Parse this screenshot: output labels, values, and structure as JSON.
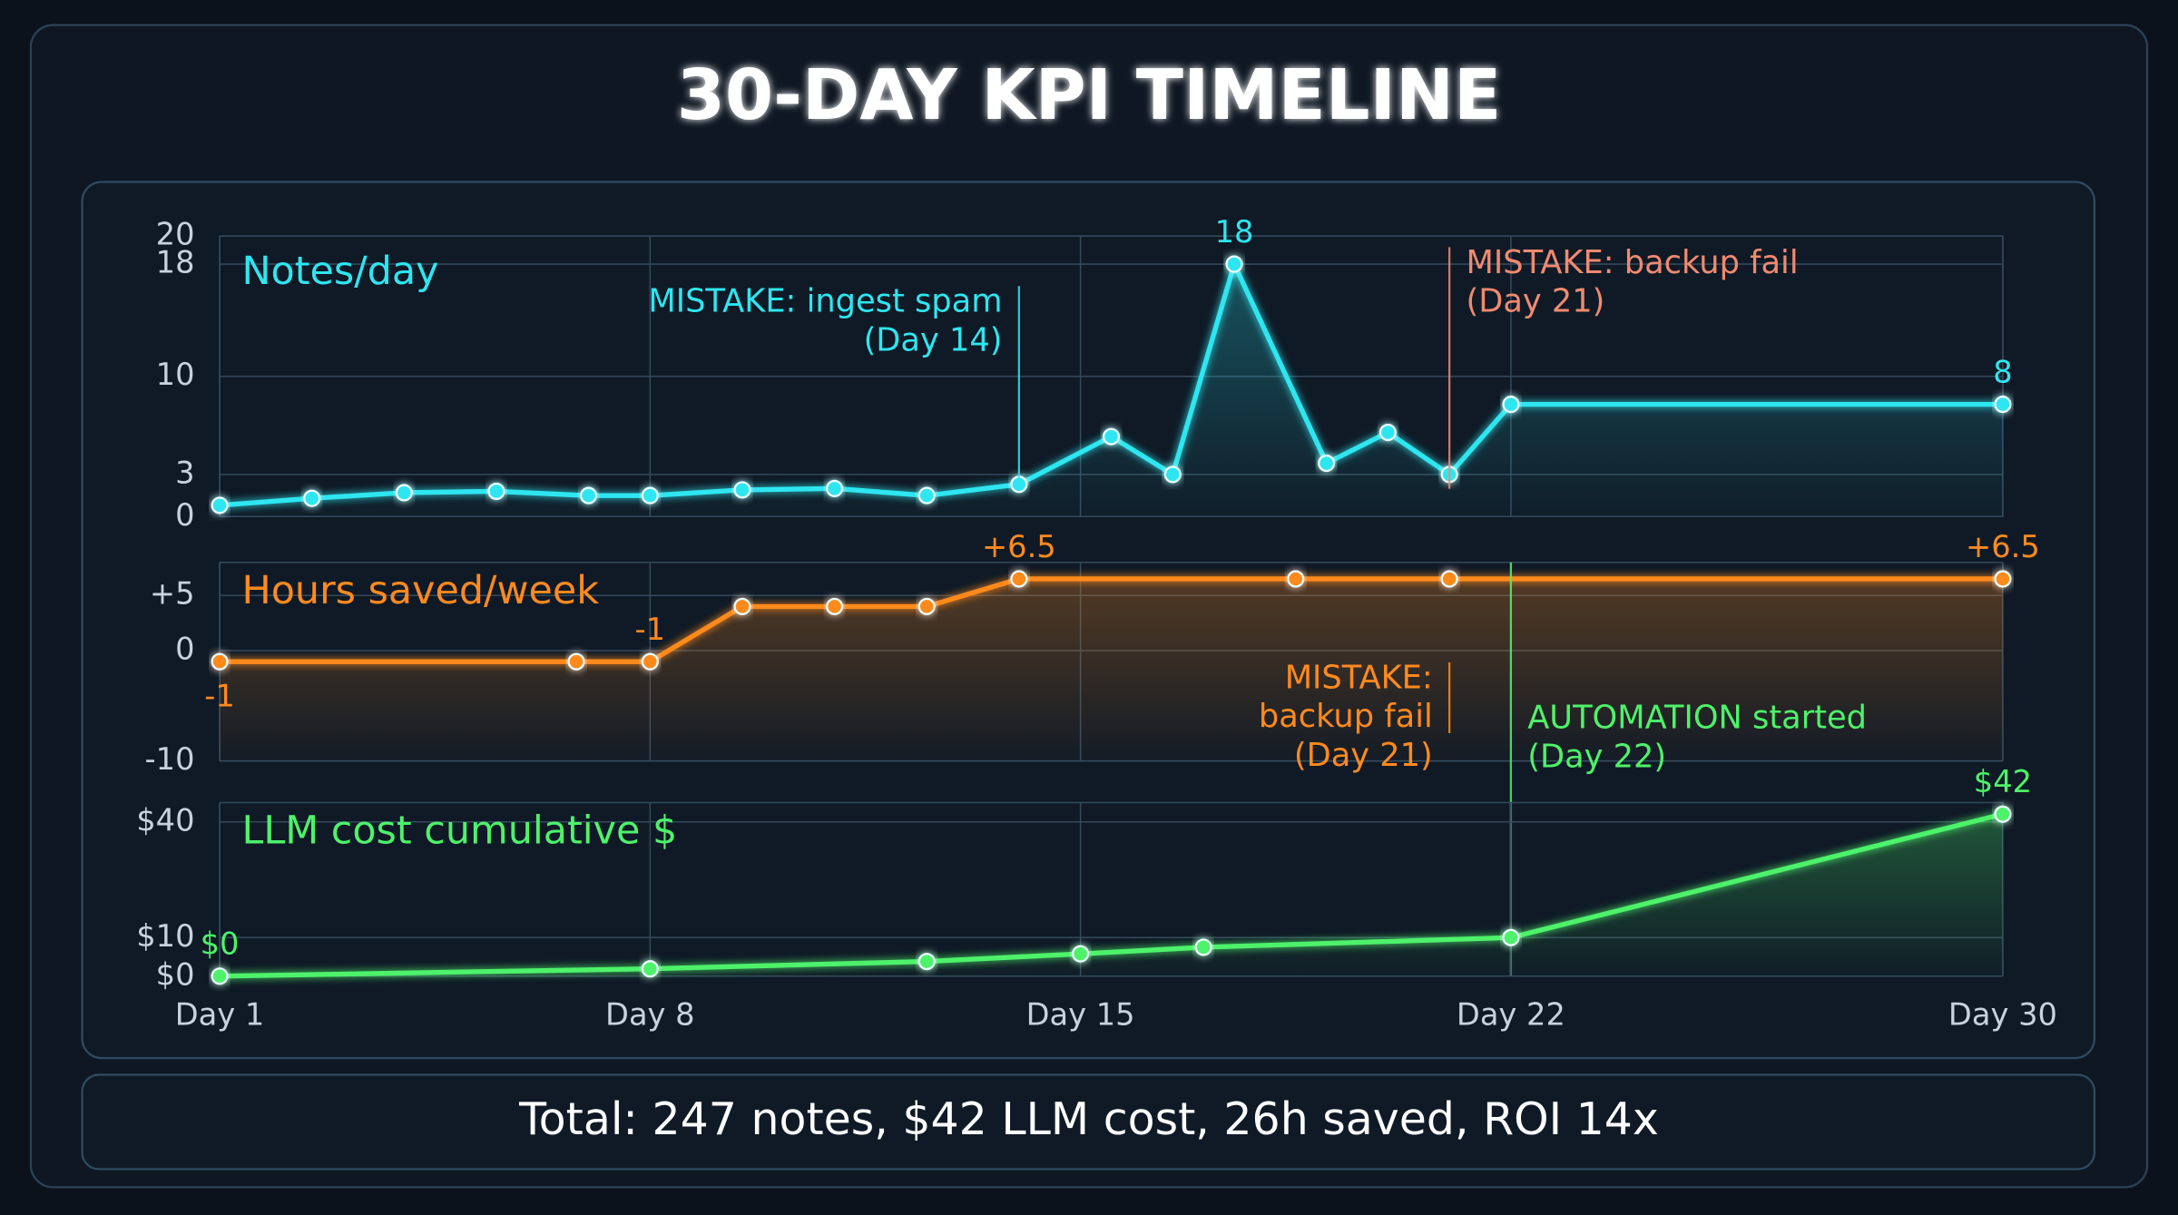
{
  "title": "30-DAY KPI TIMELINE",
  "footer": "Total: 247 notes, $42 LLM cost, 26h saved, ROI 14x",
  "chart_data": [
    {
      "type": "line",
      "title": "Notes/day",
      "color": "#2ee6f0",
      "x": [
        1,
        2.5,
        4,
        5.5,
        7,
        8,
        9.5,
        11,
        12.5,
        14,
        15.5,
        16.5,
        17.5,
        19,
        20,
        21,
        22,
        30
      ],
      "values": [
        0.8,
        1.3,
        1.7,
        1.8,
        1.5,
        1.5,
        1.9,
        2,
        1.5,
        2.3,
        5.7,
        3,
        18,
        3.8,
        6,
        3,
        8,
        8
      ],
      "value_labels": [
        null,
        null,
        null,
        null,
        null,
        null,
        null,
        null,
        null,
        null,
        null,
        null,
        "18",
        null,
        null,
        null,
        null,
        "8"
      ],
      "xlim": [
        1,
        30
      ],
      "ylim": [
        0,
        20
      ],
      "yticks": [
        0,
        3,
        10,
        18,
        20
      ],
      "grid": true,
      "annotations": [
        {
          "x": 14,
          "text": [
            "MISTAKE: ingest spam",
            "(Day 14)"
          ],
          "color": "#2ee6f0",
          "side": "left"
        },
        {
          "x": 21,
          "text": [
            "MISTAKE: backup fail",
            "(Day 21)"
          ],
          "color": "#f08a70",
          "side": "right"
        }
      ]
    },
    {
      "type": "line",
      "title": "Hours saved/week",
      "color": "#ff8a1e",
      "x": [
        1,
        6.8,
        8,
        9.5,
        11,
        12.5,
        14,
        18.5,
        21,
        30
      ],
      "values": [
        -1,
        -1,
        -1,
        4,
        4,
        4,
        6.5,
        6.5,
        6.5,
        6.5
      ],
      "value_labels": [
        "-1",
        null,
        "-1",
        null,
        null,
        null,
        "+6.5",
        null,
        null,
        "+6.5"
      ],
      "xlim": [
        1,
        30
      ],
      "ylim": [
        -10,
        8
      ],
      "yticks": [
        -10,
        0,
        {
          "value": 5,
          "label": "+5"
        }
      ],
      "grid": true,
      "annotations": [
        {
          "x": 21,
          "text": [
            "MISTAKE:",
            "backup fail",
            "(Day 21)"
          ],
          "color": "#ff8a1e",
          "side": "left"
        },
        {
          "x": 22,
          "text": [
            "AUTOMATION started",
            "(Day 22)"
          ],
          "color": "#4ef26a",
          "side": "right"
        }
      ]
    },
    {
      "type": "line",
      "title": "LLM cost cumulative $",
      "color": "#4ef26a",
      "x": [
        1,
        8,
        12.5,
        15,
        17,
        22,
        30
      ],
      "values": [
        0,
        1.9,
        3.8,
        5.8,
        7.5,
        10,
        42
      ],
      "value_labels": [
        "$0",
        null,
        null,
        null,
        null,
        null,
        "$42"
      ],
      "xlim": [
        1,
        30
      ],
      "ylim": [
        0,
        45
      ],
      "yticks": [
        {
          "value": 0,
          "label": "$0"
        },
        {
          "value": 10,
          "label": "$10"
        },
        {
          "value": 40,
          "label": "$40"
        }
      ],
      "xticks": [
        {
          "value": 1,
          "label": "Day 1"
        },
        {
          "value": 8,
          "label": "Day 8"
        },
        {
          "value": 15,
          "label": "Day 15"
        },
        {
          "value": 22,
          "label": "Day 22"
        },
        {
          "value": 30,
          "label": "Day 30"
        }
      ],
      "grid": true
    }
  ]
}
